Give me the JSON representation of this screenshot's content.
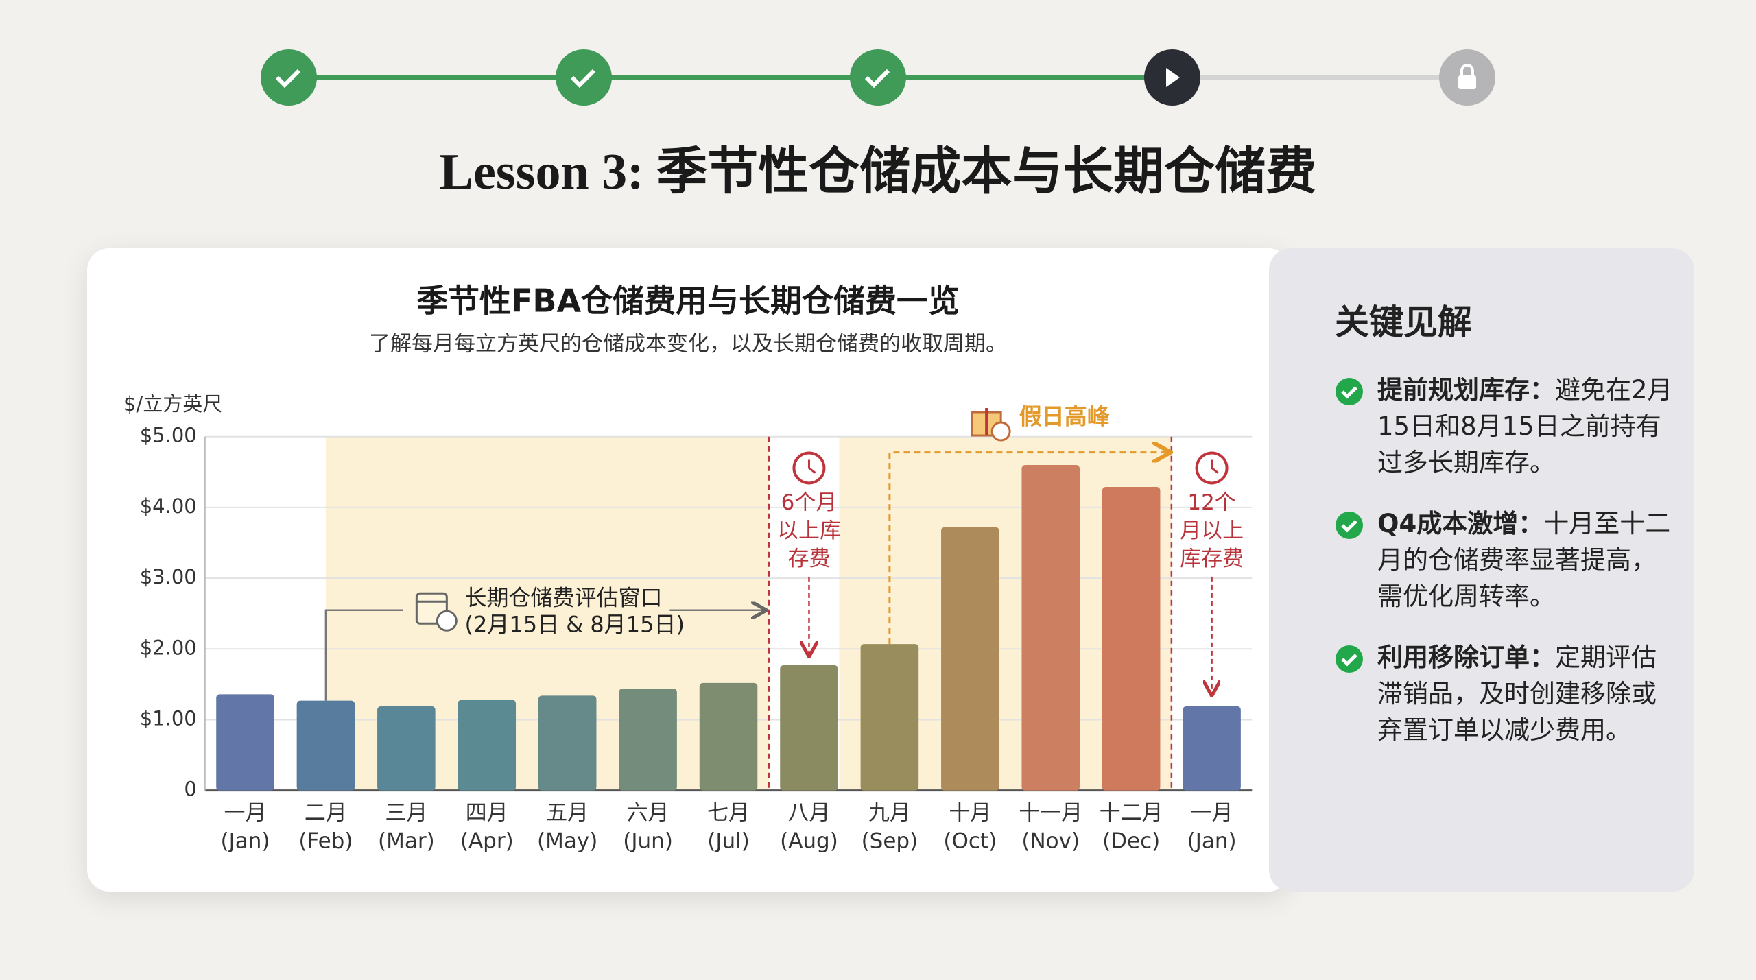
{
  "title": "Lesson 3: 季节性仓储成本与长期仓储费",
  "chart_data": {
    "type": "bar",
    "title": "季节性FBA仓储费用与长期仓储费一览",
    "subtitle": "了解每月每立方英尺的仓储成本变化，以及长期仓储费的收取周期。",
    "y_label": "$/立方英尺",
    "categories": [
      "一月",
      "二月",
      "三月",
      "四月",
      "五月",
      "六月",
      "七月",
      "八月",
      "九月",
      "十月",
      "十一月",
      "十二月",
      "一月"
    ],
    "categories_en": [
      "(Jan)",
      "(Feb)",
      "(Mar)",
      "(Apr)",
      "(May)",
      "(Jun)",
      "(Jul)",
      "(Aug)",
      "(Sep)",
      "(Oct)",
      "(Nov)",
      "(Dec)",
      "(Jan)"
    ],
    "values": [
      1.36,
      1.27,
      1.19,
      1.28,
      1.34,
      1.44,
      1.52,
      1.77,
      2.07,
      3.72,
      4.6,
      4.29,
      1.19
    ],
    "colors": [
      "#6376a8",
      "#587c9e",
      "#5a8798",
      "#5c8a92",
      "#66898a",
      "#748c7c",
      "#7e8d70",
      "#8b8b62",
      "#998d5d",
      "#ae8b5a",
      "#cc8061",
      "#cf7a5c",
      "#6376a8"
    ],
    "ylim": [
      0,
      5
    ],
    "yticks": [
      0,
      {
        "value": 1,
        "label": "$1.00"
      },
      {
        "value": 2,
        "label": "$2.00"
      },
      {
        "value": 3,
        "label": "$3.00"
      },
      {
        "value": 4,
        "label": "$4.00"
      },
      {
        "value": 5,
        "label": "$5.00"
      }
    ],
    "grid": true,
    "annotations": {
      "window": [
        "长期仓储费评估窗口",
        "(2月15日 & 8月15日)"
      ],
      "six_month": [
        "6个月",
        "以上库",
        "存费"
      ],
      "twelve_month": [
        "12个",
        "月以上",
        "库存费"
      ],
      "holiday": "假日高峰"
    }
  },
  "insights": {
    "title": "关键见解",
    "items": [
      {
        "heading": "提前规划库存：",
        "text": "避免在2月15日和8月15日之前持有过多长期库存。"
      },
      {
        "heading": "Q4成本激增：",
        "text": "十月至十二月的仓储费率显著提高，需优化周转率。"
      },
      {
        "heading": "利用移除订单：",
        "text": "定期评估滞销品，及时创建移除或弃置订单以减少费用。"
      }
    ]
  }
}
